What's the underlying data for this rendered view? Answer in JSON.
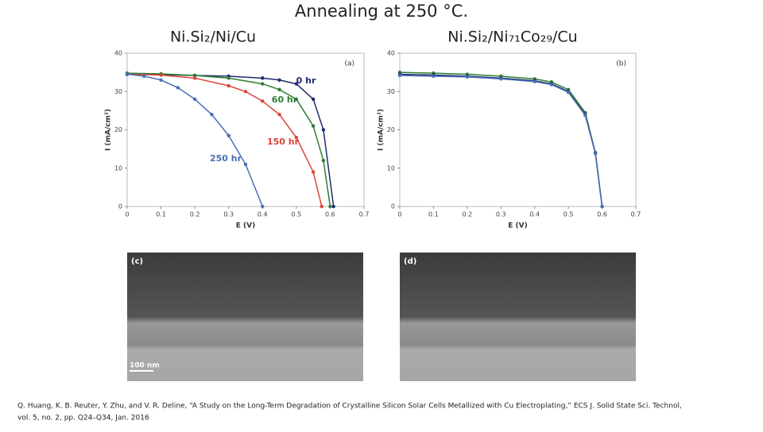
{
  "slide": {
    "title": "Annealing at 250 °C.",
    "citation": [
      "Q. Huang, K. B. Reuter, Y. Zhu, and V. R. Deline, “A Study on the Long-Term Degradation of Crystalline Silicon Solar Cells Metallized with Cu Electroplating,” ECS J. Solid State Sci. Technol, ",
      "vol. 5, no. 2, pp. Q24–Q34, Jan. 2016"
    ]
  },
  "images": [
    {
      "label": "(c)",
      "scale_bar": "100 nm"
    },
    {
      "label": "(d)"
    }
  ],
  "chart_data": [
    {
      "type": "line",
      "title": "Ni.Si₂/Ni/Cu",
      "panel": "(a)",
      "x_label": "E (V)",
      "y_label": "I (mA/cm²)",
      "xlim": [
        0,
        0.7
      ],
      "xticks": [
        0,
        0.1,
        0.2,
        0.3,
        0.4,
        0.5,
        0.6,
        0.7
      ],
      "ylim": [
        0,
        40
      ],
      "yticks": [
        0,
        10,
        20,
        30,
        40
      ],
      "series": [
        {
          "name": "0 hr",
          "color": "#1f2a6e",
          "x": [
            0,
            0.1,
            0.2,
            0.3,
            0.4,
            0.45,
            0.5,
            0.55,
            0.58,
            0.61
          ],
          "values": [
            34.5,
            34.4,
            34.2,
            34,
            33.5,
            33,
            32,
            28,
            20,
            0
          ]
        },
        {
          "name": "60 hr",
          "color": "#2e7d32",
          "x": [
            0,
            0.1,
            0.2,
            0.3,
            0.4,
            0.45,
            0.5,
            0.55,
            0.58,
            0.6
          ],
          "values": [
            34.8,
            34.6,
            34.2,
            33.5,
            32,
            30.5,
            28,
            21,
            12,
            0
          ]
        },
        {
          "name": "150 hr",
          "color": "#d9453b",
          "x": [
            0,
            0.1,
            0.2,
            0.3,
            0.35,
            0.4,
            0.45,
            0.5,
            0.55,
            0.575
          ],
          "values": [
            34.5,
            34.3,
            33.5,
            31.5,
            30,
            27.5,
            24,
            18,
            9,
            0
          ]
        },
        {
          "name": "250 hr",
          "color": "#4a6fb5",
          "x": [
            0,
            0.05,
            0.1,
            0.15,
            0.2,
            0.25,
            0.3,
            0.35,
            0.4
          ],
          "values": [
            34.5,
            34,
            33,
            31,
            28,
            24,
            18.5,
            11,
            0
          ]
        }
      ]
    },
    {
      "type": "line",
      "title": "Ni.Si₂/Ni₇₁Co₂₉/Cu",
      "panel": "(b)",
      "x_label": "E (V)",
      "y_label": "I (mA/cm²)",
      "xlim": [
        0,
        0.7
      ],
      "xticks": [
        0,
        0.1,
        0.2,
        0.3,
        0.4,
        0.5,
        0.6,
        0.7
      ],
      "ylim": [
        0,
        40
      ],
      "yticks": [
        0,
        10,
        20,
        30,
        40
      ],
      "series": [
        {
          "color": "#2e7d32",
          "x": [
            0,
            0.1,
            0.2,
            0.3,
            0.4,
            0.45,
            0.5,
            0.55,
            0.58,
            0.6
          ],
          "values": [
            35,
            34.8,
            34.5,
            34,
            33.3,
            32.5,
            30.5,
            24.5,
            14,
            0
          ]
        },
        {
          "color": "#1f2a6e",
          "x": [
            0,
            0.1,
            0.2,
            0.3,
            0.4,
            0.45,
            0.5,
            0.55,
            0.58,
            0.6
          ],
          "values": [
            34.5,
            34.3,
            34,
            33.5,
            32.8,
            32,
            30,
            24,
            14,
            0
          ]
        },
        {
          "color": "#4a6fb5",
          "x": [
            0,
            0.1,
            0.2,
            0.3,
            0.4,
            0.45,
            0.5,
            0.55,
            0.58,
            0.6
          ],
          "values": [
            34.2,
            34,
            33.8,
            33.3,
            32.6,
            31.8,
            29.8,
            23.8,
            13.8,
            0
          ]
        }
      ]
    }
  ]
}
